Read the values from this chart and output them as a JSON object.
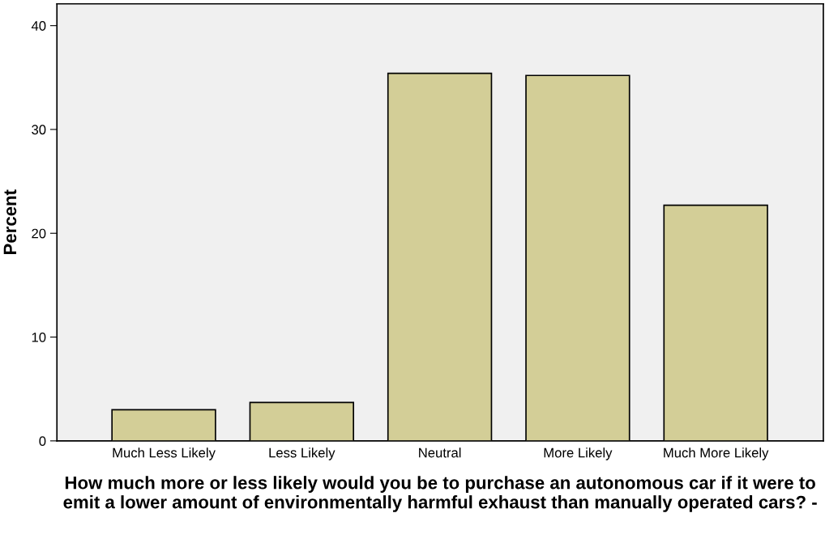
{
  "chart_data": {
    "type": "bar",
    "xlabel": "How much more or less likely would you be to purchase an autonomous car if it were to emit a lower amount of environmentally harmful exhaust than manually operated cars? -",
    "ylabel": "Percent",
    "categories": [
      "Much Less Likely",
      "Less Likely",
      "Neutral",
      "More Likely",
      "Much More Likely"
    ],
    "values": [
      3.0,
      3.7,
      35.4,
      35.2,
      22.7
    ],
    "color": "#d3ce97",
    "ylim": [
      0,
      42.1
    ],
    "yticks": [
      0,
      10,
      20,
      30,
      40
    ],
    "grid": false,
    "legend": false
  }
}
